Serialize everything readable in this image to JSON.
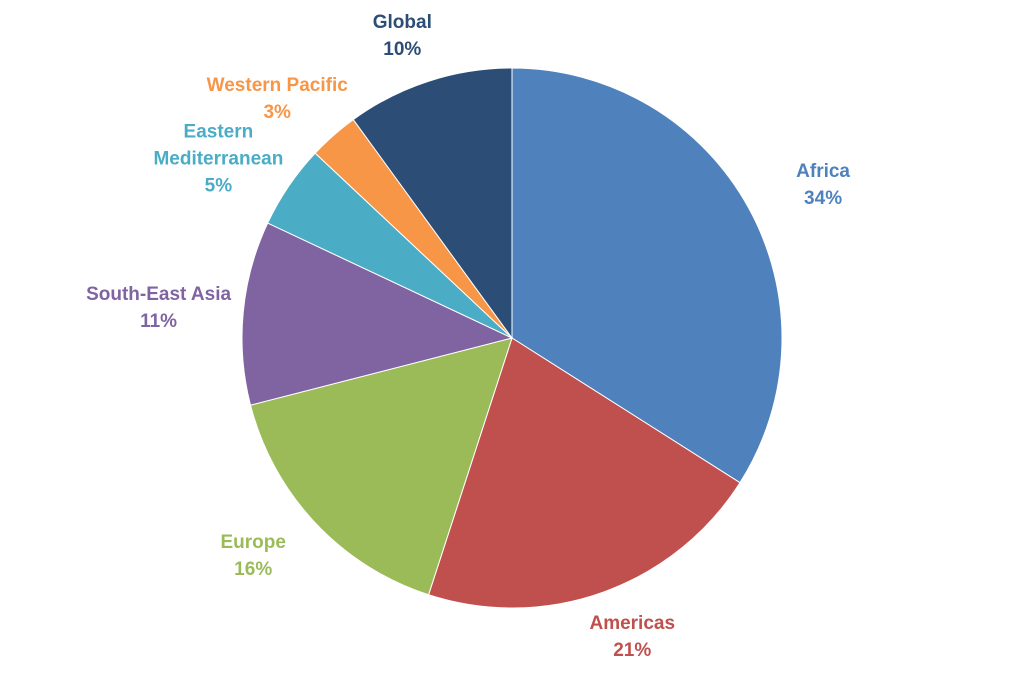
{
  "chart_data": {
    "type": "pie",
    "categories": [
      "Africa",
      "Americas",
      "Europe",
      "South-East Asia",
      "Eastern Mediterranean",
      "Western Pacific",
      "Global"
    ],
    "values": [
      34,
      21,
      16,
      11,
      5,
      3,
      10
    ],
    "value_labels": [
      "34%",
      "21%",
      "16%",
      "11%",
      "5%",
      "3%",
      "10%"
    ],
    "colors": [
      "#4f81bd",
      "#c0504d",
      "#9bbb59",
      "#8064a2",
      "#4bacc6",
      "#f79646",
      "#2c4d75"
    ]
  }
}
